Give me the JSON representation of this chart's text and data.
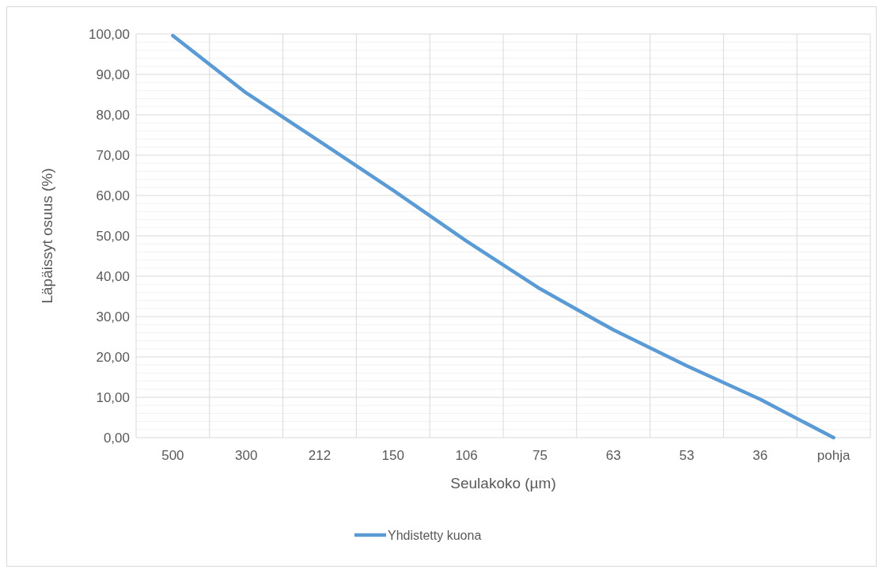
{
  "chart_data": {
    "type": "line",
    "xlabel": "Seulakoko (µm)",
    "ylabel": "Läpäissyt  osuus (%)",
    "categories": [
      "500",
      "300",
      "212",
      "150",
      "106",
      "75",
      "63",
      "53",
      "36",
      "pohja"
    ],
    "series": [
      {
        "name": "Yhdistetty kuona",
        "color": "#5b9bd5",
        "values": [
          99.6,
          85.4,
          73.4,
          61.3,
          48.7,
          36.9,
          26.7,
          17.8,
          9.5,
          0
        ]
      }
    ],
    "ylim": [
      0,
      100
    ],
    "yticks": [
      {
        "value": 0,
        "label": "0,00"
      },
      {
        "value": 10,
        "label": "10,00"
      },
      {
        "value": 20,
        "label": "20,00"
      },
      {
        "value": 30,
        "label": "30,00"
      },
      {
        "value": 40,
        "label": "40,00"
      },
      {
        "value": 50,
        "label": "50,00"
      },
      {
        "value": 60,
        "label": "60,00"
      },
      {
        "value": 70,
        "label": "70,00"
      },
      {
        "value": 80,
        "label": "80,00"
      },
      {
        "value": 90,
        "label": "90,00"
      },
      {
        "value": 100,
        "label": "100,00"
      }
    ],
    "grid": true,
    "legend": "bottom",
    "marker": "none",
    "line_style": "solid"
  }
}
